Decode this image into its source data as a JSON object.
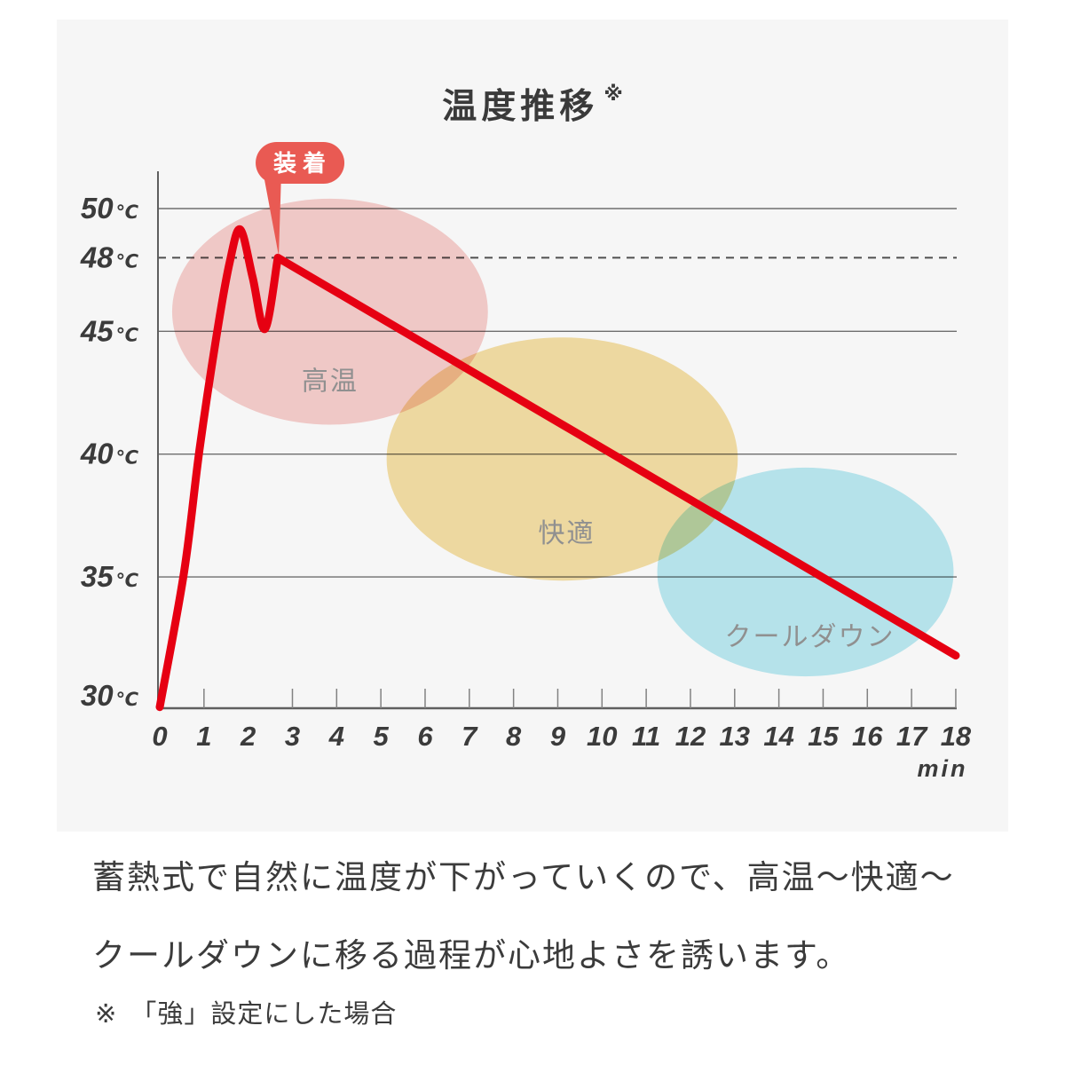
{
  "header": {
    "title": "温度推移",
    "note_mark": "※"
  },
  "chart_data": {
    "type": "line",
    "title": "温度推移",
    "xlabel": "min",
    "ylabel": "℃",
    "xlim": [
      0,
      18
    ],
    "ylim": [
      29.5,
      51
    ],
    "x_ticks": [
      0,
      1,
      2,
      3,
      4,
      5,
      6,
      7,
      8,
      9,
      10,
      11,
      12,
      13,
      14,
      15,
      16,
      17,
      18
    ],
    "x_tick_marks": [
      1,
      3,
      4,
      5,
      6,
      7,
      8,
      9,
      10,
      11,
      12,
      13,
      14,
      15,
      16,
      17,
      18
    ],
    "y_gridlines": [
      {
        "value": 50,
        "style": "solid"
      },
      {
        "value": 48,
        "style": "dashed"
      },
      {
        "value": 45,
        "style": "solid"
      },
      {
        "value": 40,
        "style": "solid"
      },
      {
        "value": 35,
        "style": "solid"
      },
      {
        "value": 30,
        "style": "baseline"
      }
    ],
    "grid_color": "#6e6e6e",
    "axis_color": "#5f5f5f",
    "tick_color": "#828282",
    "dashed_color": "#4f4f4f",
    "tick_label_color": "#3b3b3b",
    "region_label_color": "#909090",
    "series": [
      {
        "name": "温度",
        "color": "#e60012",
        "smooth_points": 9,
        "points": [
          [
            0,
            29.7
          ],
          [
            0.55,
            35.2
          ],
          [
            0.9,
            40.2
          ],
          [
            1.3,
            45.0
          ],
          [
            1.58,
            47.8
          ],
          [
            1.82,
            49.15
          ],
          [
            2.1,
            47.2
          ],
          [
            2.38,
            45.1
          ],
          [
            2.67,
            48.0
          ],
          [
            18,
            31.8
          ]
        ]
      }
    ],
    "annotation": {
      "label": "装着",
      "color": "#e95a53",
      "text_color": "#ffffff",
      "target": [
        2.67,
        48.0
      ]
    },
    "regions": [
      {
        "label": "高温",
        "fill": "#f8d0ce",
        "center": [
          3.85,
          45.8
        ],
        "rx": 3.57,
        "ry": 4.6,
        "label_pos": [
          3.85,
          43.0
        ]
      },
      {
        "label": "快適",
        "fill": "#f6e0a6",
        "center": [
          9.1,
          39.8
        ],
        "rx": 3.97,
        "ry": 4.95,
        "label_pos": [
          9.2,
          36.8
        ]
      },
      {
        "label": "クールダウン",
        "fill": "#bcebf3",
        "center": [
          14.6,
          35.2
        ],
        "rx": 3.35,
        "ry": 4.25,
        "label_pos": [
          14.7,
          32.6
        ]
      }
    ]
  },
  "description": {
    "line1": "蓄熱式で自然に温度が下がっていくので、高温〜快適〜",
    "line2": "クールダウンに移る過程が心地よさを誘います。"
  },
  "footnote": {
    "mark": "※",
    "text": "「強」設定にした場合"
  }
}
